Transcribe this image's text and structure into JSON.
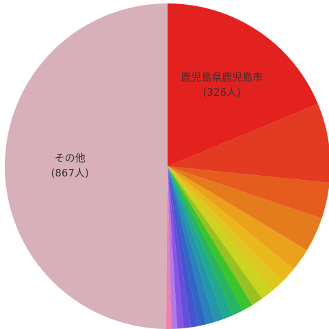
{
  "chart_data": {
    "type": "pie",
    "categories": [
      "鹿児島県鹿児島市",
      null,
      null,
      null,
      null,
      null,
      null,
      null,
      null,
      null,
      null,
      null,
      null,
      null,
      null,
      null,
      null,
      null,
      null,
      null,
      "その他"
    ],
    "values": [
      326,
      137,
      62,
      60,
      39,
      28,
      24,
      22,
      20,
      19,
      18,
      17,
      16,
      15,
      14,
      13,
      12,
      11,
      10,
      9,
      867
    ],
    "value_labels": [
      "(326人)",
      null,
      null,
      null,
      null,
      null,
      null,
      null,
      null,
      null,
      null,
      null,
      null,
      null,
      null,
      null,
      null,
      null,
      null,
      null,
      "(867人)"
    ],
    "colors": [
      "#e32220",
      "#e33a22",
      "#e55c1e",
      "#e47c1e",
      "#eba11c",
      "#e9b81c",
      "#dcc81e",
      "#cbd420",
      "#98c222",
      "#3cc52a",
      "#27b560",
      "#23a890",
      "#2397a8",
      "#2a82bb",
      "#2f68c4",
      "#4554cf",
      "#6450d8",
      "#8a55e2",
      "#b07ae8",
      "#f080b0",
      "#d8b0ba"
    ]
  }
}
